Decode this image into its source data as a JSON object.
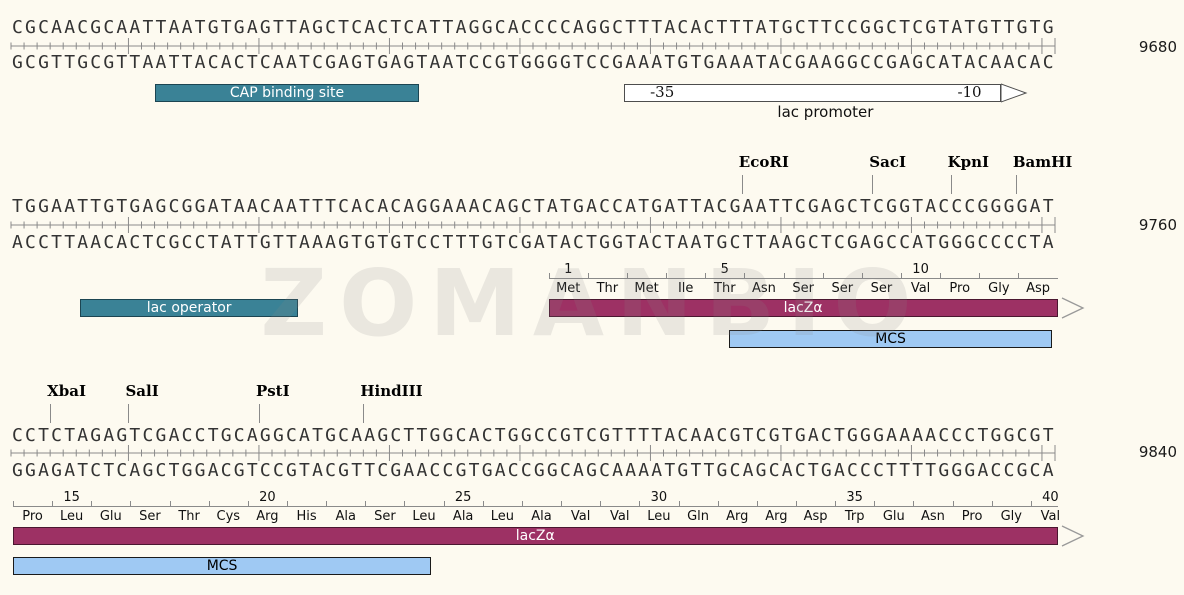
{
  "watermark": "ZOMANBIO",
  "colors": {
    "background": "#fdfaf0",
    "teal_fill": "#3a8296",
    "teal_border": "#1c4552",
    "maroon_fill": "#9d3164",
    "maroon_border": "#4a1730",
    "mcs_fill": "#9fc9f3",
    "mcs_border": "#1a1a1a",
    "promoter_fill": "#ffffff",
    "promoter_border": "#4d4d4d",
    "ruler_gray": "#8a8a8a"
  },
  "rows": [
    {
      "position_label": "9680",
      "top_strand": "CGCAACGCAATTAATGTGAGTTAGCTCACTCATTAGGCACCCCAGGCTTTACACTTTATGCTTCCGGCTCGTATGTTGTG",
      "bottom_strand": "GCGTTGCGTTAATTACACTCAATCGAGTGAGTAATCCGTGGGGTCCGAAATGTGAAATACGAAGGCCGAGCATACAACAC",
      "enzymes": [],
      "features": [
        {
          "name": "cap-binding-site",
          "label": "CAP binding site",
          "kind": "teal",
          "k0": 11.0,
          "k1": 31.3
        }
      ],
      "promoter": {
        "label": "lac promoter",
        "k0": 47.0,
        "k1": 75.9,
        "segments": [
          {
            "label": "-35",
            "k_end": 52.8
          },
          {
            "label": "",
            "k_end": 71.0
          },
          {
            "label": "-10",
            "k_end": 75.9
          }
        ]
      },
      "translation": null,
      "mcs": null
    },
    {
      "position_label": "9760",
      "top_strand": "TGGAATTGTGAGCGGATAACAATTTCACACAGGAAACAGCTATGACCATGATTACGAATTCGAGCTCGGTACCCGGGGAT",
      "bottom_strand": "ACCTTAACACTCGCCTATTGTTAAAGTGTGTCCTTTGTCGATACTGGTACTAATGCTTAAGCTCGAGCCATGGGCCCCTA",
      "enzymes": [
        {
          "label": "EcoRI",
          "k": 56
        },
        {
          "label": "SacI",
          "k": 66
        },
        {
          "label": "KpnI",
          "k": 72
        },
        {
          "label": "BamHI",
          "k": 77
        }
      ],
      "features": [
        {
          "name": "lac-operator",
          "label": "lac operator",
          "kind": "teal",
          "k0": 5.3,
          "k1": 22.0
        }
      ],
      "promoter": null,
      "translation": {
        "k_start": 41.2,
        "start_num": 1,
        "residues": [
          "Met",
          "Thr",
          "Met",
          "Ile",
          "Thr",
          "Asn",
          "Ser",
          "Ser",
          "Ser",
          "Val",
          "Pro",
          "Gly",
          "Asp"
        ],
        "bar": {
          "label": "lacZα",
          "k0": 41.2,
          "k1": 80.2,
          "arrow": true
        }
      },
      "mcs": {
        "label": "MCS",
        "k0": 55.0,
        "k1": 79.8
      }
    },
    {
      "position_label": "9840",
      "top_strand": "CCTCTAGAGTCGACCTGCAGGCATGCAAGCTTGGCACTGGCCGTCGTTTTACAACGTCGTGACTGGGAAAACCCTGGCGT",
      "bottom_strand": "GGAGATCTCAGCTGGACGTCCGTACGTTCGAACCGTGACCGGCAGCAAAATGTTGCAGCACTGACCCTTTTGGGACCGCA",
      "enzymes": [
        {
          "label": "XbaI",
          "k": 3
        },
        {
          "label": "SalI",
          "k": 9
        },
        {
          "label": "PstI",
          "k": 19
        },
        {
          "label": "HindIII",
          "k": 27
        }
      ],
      "features": [],
      "promoter": null,
      "translation": {
        "k_start": 0.15,
        "start_num": 14,
        "residues": [
          "Pro",
          "Leu",
          "Glu",
          "Ser",
          "Thr",
          "Cys",
          "Arg",
          "His",
          "Ala",
          "Ser",
          "Leu",
          "Ala",
          "Leu",
          "Ala",
          "Val",
          "Val",
          "Leu",
          "Gln",
          "Arg",
          "Arg",
          "Asp",
          "Trp",
          "Glu",
          "Asn",
          "Pro",
          "Gly",
          "Val"
        ],
        "bar": {
          "label": "lacZα",
          "k0": 0.15,
          "k1": 80.2,
          "arrow": true
        }
      },
      "mcs": {
        "label": "MCS",
        "k0": 0.15,
        "k1": 32.2
      }
    }
  ]
}
